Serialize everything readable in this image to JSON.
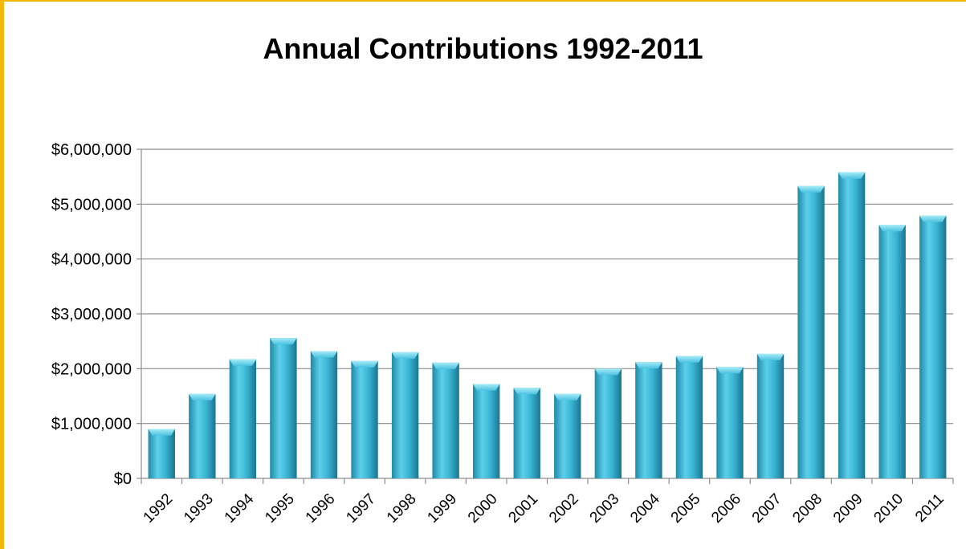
{
  "chart_data": {
    "type": "bar",
    "title": "Annual Contributions 1992-2011",
    "xlabel": "",
    "ylabel": "",
    "categories": [
      "1992",
      "1993",
      "1994",
      "1995",
      "1996",
      "1997",
      "1998",
      "1999",
      "2000",
      "2001",
      "2002",
      "2003",
      "2004",
      "2005",
      "2006",
      "2007",
      "2008",
      "2009",
      "2010",
      "2011"
    ],
    "values": [
      900000,
      1540000,
      2170000,
      2560000,
      2320000,
      2140000,
      2300000,
      2110000,
      1720000,
      1650000,
      1540000,
      2000000,
      2120000,
      2230000,
      2030000,
      2270000,
      5330000,
      5580000,
      4620000,
      4790000
    ],
    "ylim": [
      0,
      6000000
    ],
    "yticks": [
      0,
      1000000,
      2000000,
      3000000,
      4000000,
      5000000,
      6000000
    ],
    "ytick_labels": [
      "$0",
      "$1,000,000",
      "$2,000,000",
      "$3,000,000",
      "$4,000,000",
      "$5,000,000",
      "$6,000,000"
    ],
    "grid": true,
    "bar_color": "#3bb0d0",
    "frame_color": "#f5b800"
  }
}
